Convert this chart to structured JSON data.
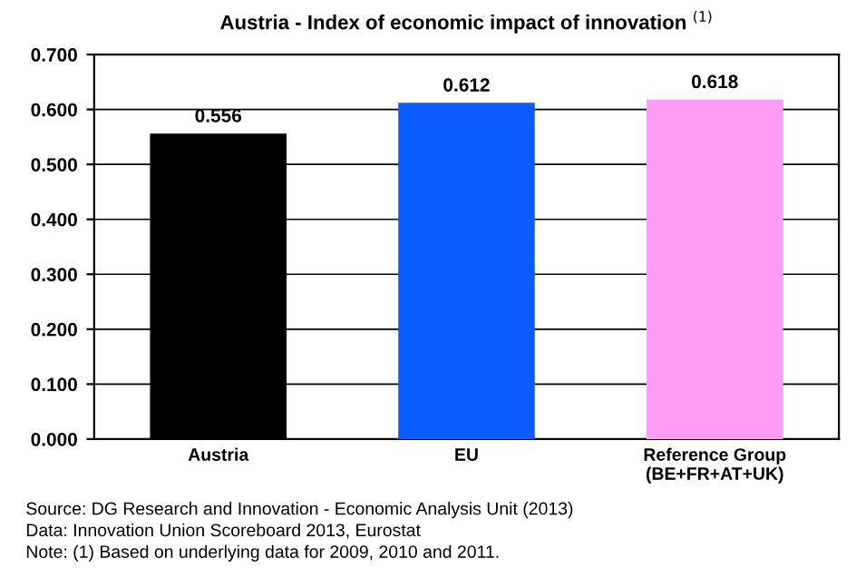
{
  "chart_data": {
    "type": "bar",
    "title": "Austria - Index of economic impact of innovation $^{(1)}$",
    "categories": [
      "Austria",
      "EU",
      "Reference Group\n(BE+FR+AT+UK)"
    ],
    "values": [
      0.556,
      0.612,
      0.618
    ],
    "colors": [
      "#000000",
      "#0a5cff",
      "#ff9cf5"
    ],
    "ylim": [
      0,
      0.7
    ],
    "yticks": [
      {
        "value": 0,
        "label": "0.000"
      },
      {
        "value": 0.1,
        "label": "0.100"
      },
      {
        "value": 0.2,
        "label": "0.200"
      },
      {
        "value": 0.3,
        "label": "0.300"
      },
      {
        "value": 0.4,
        "label": "0.400"
      },
      {
        "value": 0.5,
        "label": "0.500"
      },
      {
        "value": 0.6,
        "label": "0.600"
      },
      {
        "value": 0.7,
        "label": "0.700"
      }
    ],
    "grid": "y",
    "data_labels": true,
    "annotations": [
      "Source: DG Research and Innovation - Economic Analysis Unit (2013)",
      "Data: Innovation Union Scoreboard 2013, Eurostat",
      "Note: (1) Based on underlying data for 2009, 2010 and 2011."
    ]
  }
}
